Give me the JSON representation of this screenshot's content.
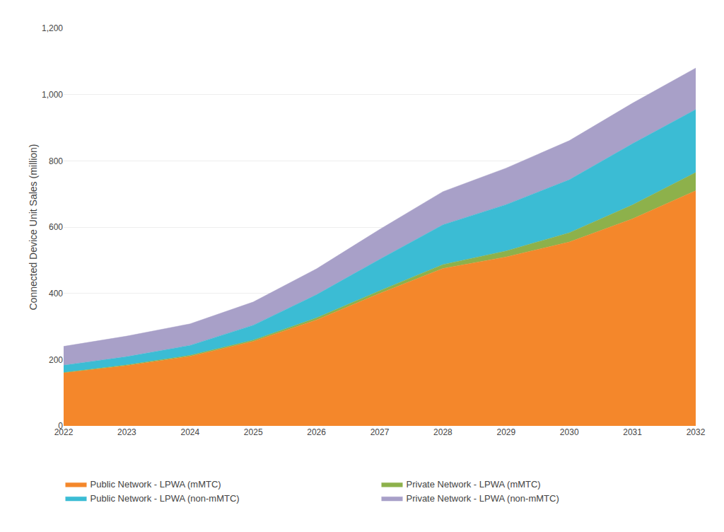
{
  "chart_data": {
    "type": "area",
    "stacked": true,
    "x": [
      2022,
      2023,
      2024,
      2025,
      2026,
      2027,
      2028,
      2029,
      2030,
      2031,
      2032
    ],
    "series": [
      {
        "name": "Public Network - LPWA (mMTC)",
        "color": "#F4872B",
        "values": [
          160,
          182,
          210,
          255,
          320,
          400,
          475,
          510,
          555,
          625,
          710
        ]
      },
      {
        "name": "Private Network - LPWA (mMTC)",
        "color": "#8DB14B",
        "values": [
          1,
          2,
          3,
          4,
          6,
          8,
          12,
          18,
          28,
          42,
          55
        ]
      },
      {
        "name": "Public Network - LPWA (non-mMTC)",
        "color": "#3BBCD4",
        "values": [
          22,
          25,
          30,
          45,
          70,
          95,
          120,
          140,
          160,
          185,
          190
        ]
      },
      {
        "name": "Private Network - LPWA (non-mMTC)",
        "color": "#A8A0C8",
        "values": [
          57,
          62,
          65,
          70,
          78,
          90,
          100,
          110,
          118,
          122,
          125
        ]
      }
    ],
    "ylabel": "Connected Device Unit Sales (million)",
    "xlim": [
      2022,
      2032
    ],
    "xticks": [
      2022,
      2023,
      2024,
      2025,
      2026,
      2027,
      2028,
      2029,
      2030,
      2031,
      2032
    ],
    "ylim": [
      0,
      1200
    ],
    "yticks": [
      0,
      200,
      400,
      600,
      800,
      {
        "value": 1000,
        "label": "1,000"
      },
      {
        "value": 1200,
        "label": "1,200"
      }
    ],
    "grid": true,
    "legend": "bottom"
  }
}
